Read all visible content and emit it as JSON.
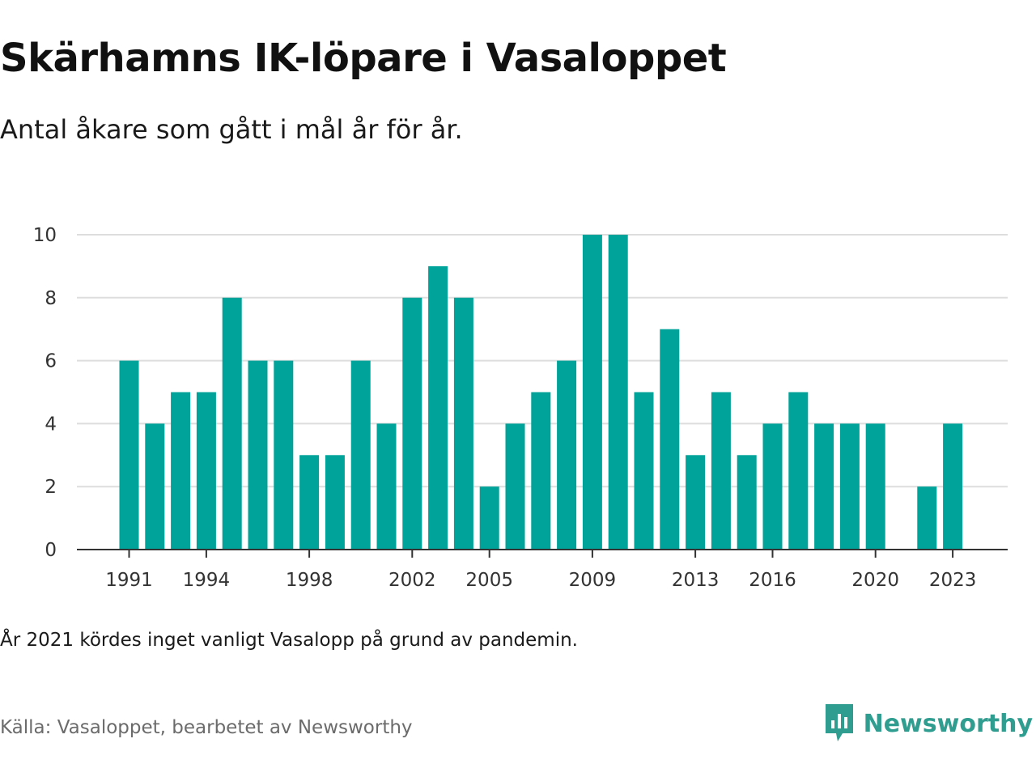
{
  "header": {
    "title": "Skärhamns IK-löpare i Vasaloppet",
    "subtitle": "Antal åkare som gått i mål år för år."
  },
  "footer": {
    "note": "År 2021 kördes inget vanligt Vasalopp på grund av pandemin.",
    "source": "Källa: Vasaloppet, bearbetet av Newsworthy",
    "brand": "Newsworthy"
  },
  "colors": {
    "bar": "#00a399",
    "grid": "#dddddd",
    "axis": "#333333",
    "brand": "#2f9d8f"
  },
  "chart_data": {
    "type": "bar",
    "title": "Skärhamns IK-löpare i Vasaloppet",
    "subtitle": "Antal åkare som gått i mål år för år.",
    "xlabel": "",
    "ylabel": "",
    "categories": [
      1991,
      1992,
      1993,
      1994,
      1995,
      1996,
      1997,
      1998,
      1999,
      2000,
      2001,
      2002,
      2003,
      2004,
      2005,
      2006,
      2007,
      2008,
      2009,
      2010,
      2011,
      2012,
      2013,
      2014,
      2015,
      2016,
      2017,
      2018,
      2019,
      2020,
      2021,
      2022,
      2023
    ],
    "values": [
      6,
      4,
      5,
      5,
      8,
      6,
      6,
      3,
      3,
      6,
      4,
      8,
      9,
      8,
      2,
      4,
      5,
      6,
      10,
      10,
      5,
      7,
      3,
      5,
      3,
      4,
      5,
      4,
      4,
      4,
      null,
      2,
      4
    ],
    "x_tick_labels": [
      "1991",
      "1994",
      "1998",
      "2002",
      "2005",
      "2009",
      "2013",
      "2016",
      "2020",
      "2023"
    ],
    "y_ticks": [
      0,
      2,
      4,
      6,
      8,
      10
    ],
    "ylim": [
      0,
      10
    ],
    "grid": true,
    "legend": "none"
  }
}
